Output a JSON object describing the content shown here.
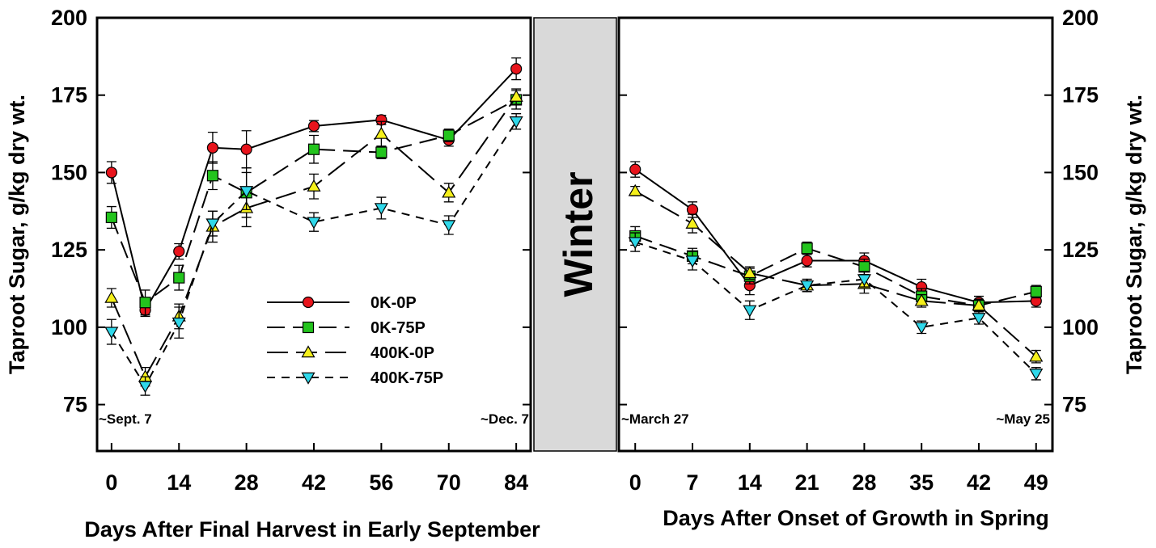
{
  "chart_data": [
    {
      "type": "line",
      "panel": "left",
      "xlabel": "Days After Final Harvest in Early September",
      "ylabel": "Taproot Sugar, g/kg dry wt.",
      "x_ticks": [
        0,
        14,
        28,
        42,
        56,
        70,
        84
      ],
      "xlim": [
        -3,
        87
      ],
      "ylim": [
        60,
        200
      ],
      "y_ticks": [
        75,
        100,
        125,
        150,
        175,
        200
      ],
      "annotations": {
        "start": "~Sept. 7",
        "end": "~Dec. 7"
      },
      "series": [
        {
          "name": "0K-0P",
          "x": [
            0,
            7,
            14,
            21,
            28,
            42,
            56,
            70,
            84
          ],
          "values": [
            150,
            105.5,
            124.5,
            158,
            157.5,
            165,
            167,
            160.5,
            183.5
          ],
          "errors": [
            3.5,
            2,
            2.5,
            5,
            6,
            1.8,
            1.5,
            2,
            3.5
          ]
        },
        {
          "name": "0K-75P",
          "x": [
            0,
            7,
            14,
            21,
            28,
            42,
            56,
            70,
            84
          ],
          "values": [
            135.5,
            108,
            116,
            149,
            143.5,
            157.5,
            156.5,
            162,
            173.5
          ],
          "errors": [
            3.5,
            4,
            4,
            4.5,
            8,
            4.5,
            2,
            2,
            3
          ]
        },
        {
          "name": "400K-0P",
          "x": [
            0,
            7,
            14,
            21,
            28,
            42,
            56,
            70,
            84
          ],
          "values": [
            109.5,
            84,
            103.5,
            132.5,
            138.5,
            145.5,
            162.5,
            143.5,
            174.5
          ],
          "errors": [
            3,
            3,
            4,
            5,
            6,
            4,
            4,
            3,
            2.5
          ]
        },
        {
          "name": "400K-75P",
          "x": [
            0,
            7,
            14,
            21,
            28,
            42,
            56,
            70,
            84
          ],
          "values": [
            98.5,
            81,
            101.5,
            133.5,
            144,
            134,
            138.5,
            133,
            166.5
          ],
          "errors": [
            4,
            3,
            5,
            4,
            6,
            3,
            3.5,
            3,
            2.5
          ]
        }
      ]
    },
    {
      "type": "line",
      "panel": "right",
      "xlabel": "Days After Onset of Growth in Spring",
      "ylabel": "Taproot Sugar, g/kg dry wt.",
      "x_ticks": [
        0,
        7,
        14,
        21,
        28,
        35,
        42,
        49
      ],
      "xlim": [
        -2,
        51
      ],
      "ylim": [
        60,
        200
      ],
      "y_ticks": [
        75,
        100,
        125,
        150,
        175,
        200
      ],
      "annotations": {
        "start": "~March 27",
        "end": "~May 25"
      },
      "series": [
        {
          "name": "0K-0P",
          "x": [
            0,
            7,
            14,
            21,
            28,
            35,
            42,
            49
          ],
          "values": [
            151,
            138,
            113.5,
            121.5,
            121.5,
            113,
            108,
            108.5
          ],
          "errors": [
            2.5,
            2.5,
            3,
            2,
            2.5,
            2.5,
            2,
            2
          ]
        },
        {
          "name": "0K-75P",
          "x": [
            0,
            7,
            14,
            21,
            28,
            35,
            42,
            49
          ],
          "values": [
            129.5,
            123,
            116.5,
            125.5,
            119.5,
            110,
            107,
            111.5
          ],
          "errors": [
            3,
            2.5,
            2.5,
            2,
            2.5,
            2.5,
            2,
            2
          ]
        },
        {
          "name": "400K-0P",
          "x": [
            0,
            7,
            14,
            21,
            28,
            35,
            42,
            49
          ],
          "values": [
            144,
            133.5,
            117.5,
            113.5,
            114,
            108.5,
            107,
            90.5
          ],
          "errors": [
            1.5,
            3,
            2,
            2,
            3,
            2,
            2,
            2
          ]
        },
        {
          "name": "400K-75P",
          "x": [
            0,
            7,
            14,
            21,
            28,
            35,
            42,
            49
          ],
          "values": [
            127.5,
            121.5,
            105.5,
            113.5,
            115.5,
            100,
            103,
            85
          ],
          "errors": [
            3,
            3,
            3,
            2,
            2.5,
            2,
            2,
            2
          ]
        }
      ]
    }
  ],
  "legend": {
    "items": [
      {
        "label": "0K-0P",
        "color": "#e8141c",
        "marker": "circle"
      },
      {
        "label": "0K-75P",
        "color": "#23c41d",
        "marker": "square"
      },
      {
        "label": "400K-0P",
        "color": "#f5f01b",
        "marker": "triangle-up"
      },
      {
        "label": "400K-75P",
        "color": "#2fd8ea",
        "marker": "triangle-down"
      }
    ]
  },
  "winter_label": "Winter",
  "y_ticks_labels": [
    "75",
    "100",
    "125",
    "150",
    "175",
    "200"
  ]
}
